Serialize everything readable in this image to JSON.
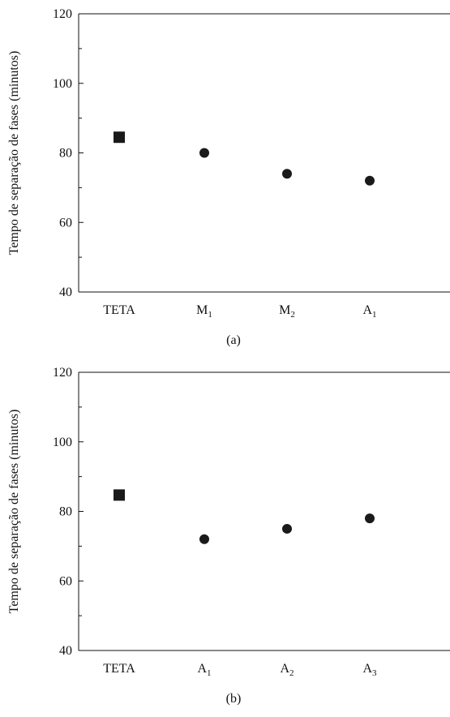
{
  "chart_data": [
    {
      "type": "scatter",
      "panel_label": "(a)",
      "ylabel": "Tempo de separação de fases (minutos)",
      "xlabel": "",
      "ylim": [
        40,
        120
      ],
      "yticks": [
        40,
        60,
        80,
        100,
        120
      ],
      "categories": [
        {
          "base": "TETA",
          "sub": ""
        },
        {
          "base": "M",
          "sub": "1"
        },
        {
          "base": "M",
          "sub": "2"
        },
        {
          "base": "A",
          "sub": "1"
        }
      ],
      "series": [
        {
          "marker": "square",
          "color": "#1a1a1a",
          "points": [
            {
              "x": "TETA",
              "y": 84.5
            }
          ]
        },
        {
          "marker": "circle",
          "color": "#1a1a1a",
          "points": [
            {
              "x": "M1",
              "y": 80
            },
            {
              "x": "M2",
              "y": 74
            },
            {
              "x": "A1",
              "y": 72
            }
          ]
        }
      ],
      "grid": false
    },
    {
      "type": "scatter",
      "panel_label": "(b)",
      "ylabel": "Tempo de separação de fases (minutos)",
      "xlabel": "",
      "ylim": [
        40,
        120
      ],
      "yticks": [
        40,
        60,
        80,
        100,
        120
      ],
      "categories": [
        {
          "base": "TETA",
          "sub": ""
        },
        {
          "base": "A",
          "sub": "1"
        },
        {
          "base": "A",
          "sub": "2"
        },
        {
          "base": "A",
          "sub": "3"
        }
      ],
      "series": [
        {
          "marker": "square",
          "color": "#1a1a1a",
          "points": [
            {
              "x": "TETA",
              "y": 84.7
            }
          ]
        },
        {
          "marker": "circle",
          "color": "#1a1a1a",
          "points": [
            {
              "x": "A1",
              "y": 72
            },
            {
              "x": "A2",
              "y": 75
            },
            {
              "x": "A3",
              "y": 78
            }
          ]
        }
      ],
      "grid": false
    }
  ]
}
